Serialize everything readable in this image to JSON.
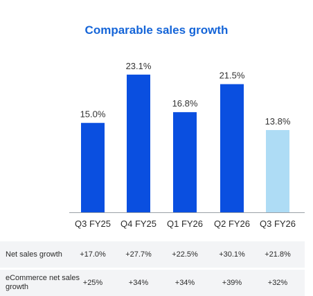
{
  "chart_data": {
    "type": "bar",
    "title": "Comparable sales growth",
    "categories": [
      "Q3 FY25",
      "Q4 FY25",
      "Q1 FY26",
      "Q2 FY26",
      "Q3 FY26"
    ],
    "values": [
      15.0,
      23.1,
      16.8,
      21.5,
      13.8
    ],
    "value_labels": [
      "15.0%",
      "23.1%",
      "16.8%",
      "21.5%",
      "13.8%"
    ],
    "colors": [
      "#0a4fe0",
      "#0a4fe0",
      "#0a4fe0",
      "#0a4fe0",
      "#aedcf5"
    ],
    "ylim": [
      0,
      25
    ],
    "grid": false,
    "table": [
      {
        "label": "Net sales growth",
        "values": [
          "+17.0%",
          "+27.7%",
          "+22.5%",
          "+30.1%",
          "+21.8%"
        ]
      },
      {
        "label": "eCommerce net sales growth",
        "values": [
          "+25%",
          "+34%",
          "+34%",
          "+39%",
          "+32%"
        ]
      }
    ]
  }
}
